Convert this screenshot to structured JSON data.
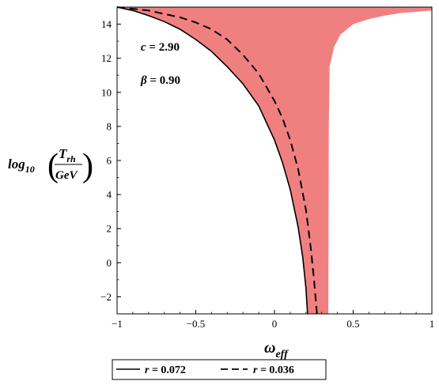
{
  "chart_data": {
    "type": "line",
    "xlim": [
      -1,
      1
    ],
    "ylim": [
      -3,
      15
    ],
    "x_ticks": [
      -1,
      -0.5,
      0,
      0.5,
      1
    ],
    "x_tick_labels": [
      "−1",
      "−0.5",
      "0",
      "0.5",
      "1"
    ],
    "y_ticks": [
      -2,
      0,
      2,
      4,
      6,
      8,
      10,
      12,
      14
    ],
    "y_tick_labels": [
      "−2",
      "0",
      "2",
      "4",
      "6",
      "8",
      "10",
      "12",
      "14"
    ],
    "xlabel": {
      "main": "ω",
      "sub": "eff"
    },
    "ylabel": {
      "prefix": "log",
      "prefix_sub": "10",
      "num_main": "T",
      "num_sub": "rh",
      "den": "GeV"
    },
    "annotations": [
      {
        "symbol": "c",
        "text": " = 2.90"
      },
      {
        "symbol": "β",
        "text": " = 0.90"
      }
    ],
    "legend_placement": "bottom",
    "series": [
      {
        "name": "r = 0.072",
        "name_var": "r",
        "name_val": " = 0.072",
        "style": "solid",
        "color": "#000000",
        "x": [
          -1,
          -0.9,
          -0.8,
          -0.7,
          -0.6,
          -0.5,
          -0.4,
          -0.3,
          -0.2,
          -0.1,
          0,
          0.05,
          0.1,
          0.15,
          0.18,
          0.2,
          0.21
        ],
        "y": [
          15,
          14.8,
          14.5,
          14.15,
          13.7,
          13.1,
          12.4,
          11.5,
          10.5,
          9.2,
          7.2,
          5.9,
          4.3,
          2.1,
          0.3,
          -1.5,
          -3
        ]
      },
      {
        "name": "r = 0.036",
        "name_var": "r",
        "name_val": " = 0.036",
        "style": "dashed",
        "color": "#000000",
        "x": [
          -1,
          -0.8,
          -0.6,
          -0.5,
          -0.4,
          -0.3,
          -0.2,
          -0.1,
          0,
          0.05,
          0.1,
          0.15,
          0.2,
          0.23,
          0.25,
          0.27
        ],
        "y": [
          15,
          14.8,
          14.4,
          14.1,
          13.7,
          13.1,
          12.2,
          11.1,
          9.5,
          8.5,
          7.2,
          5.5,
          3.1,
          0.9,
          -0.9,
          -3
        ]
      }
    ],
    "band": {
      "color": "#f08080",
      "lower": {
        "x": [
          -1,
          -0.9,
          -0.8,
          -0.7,
          -0.6,
          -0.5,
          -0.4,
          -0.3,
          -0.2,
          -0.1,
          0,
          0.05,
          0.1,
          0.15,
          0.18,
          0.2,
          0.21
        ],
        "y": [
          15,
          14.8,
          14.5,
          14.15,
          13.7,
          13.1,
          12.4,
          11.5,
          10.5,
          9.2,
          7.2,
          5.9,
          4.3,
          2.1,
          0.3,
          -1.5,
          -3
        ]
      },
      "upper": {
        "x": [
          -1,
          0,
          0.2,
          0.3,
          0.33,
          0.335,
          0.34,
          0.35,
          0.38,
          0.42,
          0.5,
          0.6,
          0.7,
          0.8,
          1
        ],
        "y": [
          15,
          15,
          14.9,
          14.6,
          14.0,
          4.5,
          -3,
          11.5,
          12.7,
          13.4,
          14.0,
          14.3,
          14.5,
          14.65,
          14.8
        ]
      }
    }
  }
}
